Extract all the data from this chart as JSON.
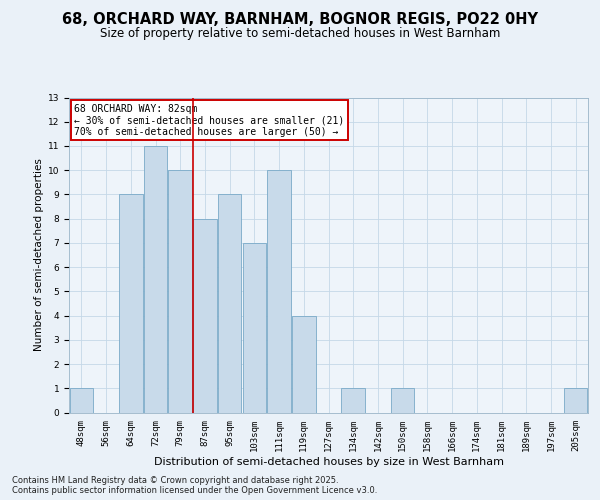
{
  "title1": "68, ORCHARD WAY, BARNHAM, BOGNOR REGIS, PO22 0HY",
  "title2": "Size of property relative to semi-detached houses in West Barnham",
  "xlabel": "Distribution of semi-detached houses by size in West Barnham",
  "ylabel": "Number of semi-detached properties",
  "categories": [
    "48sqm",
    "56sqm",
    "64sqm",
    "72sqm",
    "79sqm",
    "87sqm",
    "95sqm",
    "103sqm",
    "111sqm",
    "119sqm",
    "127sqm",
    "134sqm",
    "142sqm",
    "150sqm",
    "158sqm",
    "166sqm",
    "174sqm",
    "181sqm",
    "189sqm",
    "197sqm",
    "205sqm"
  ],
  "values": [
    1,
    0,
    9,
    11,
    10,
    8,
    9,
    7,
    10,
    4,
    0,
    1,
    0,
    1,
    0,
    0,
    0,
    0,
    0,
    0,
    1
  ],
  "bar_color": "#c8daea",
  "bar_edge_color": "#7aaac8",
  "red_line_x": 4.5,
  "annotation_line1": "68 ORCHARD WAY: 82sqm",
  "annotation_line2": "← 30% of semi-detached houses are smaller (21)",
  "annotation_line3": "70% of semi-detached houses are larger (50) →",
  "annotation_box_color": "#ffffff",
  "annotation_box_edge_color": "#cc0000",
  "red_line_color": "#cc0000",
  "ylim": [
    0,
    13
  ],
  "yticks": [
    0,
    1,
    2,
    3,
    4,
    5,
    6,
    7,
    8,
    9,
    10,
    11,
    12,
    13
  ],
  "grid_color": "#c5d8e8",
  "background_color": "#eaf1f8",
  "plot_bg_color": "#eef4fa",
  "footer1": "Contains HM Land Registry data © Crown copyright and database right 2025.",
  "footer2": "Contains public sector information licensed under the Open Government Licence v3.0.",
  "title1_fontsize": 10.5,
  "title2_fontsize": 8.5,
  "xlabel_fontsize": 8,
  "ylabel_fontsize": 7.5,
  "tick_fontsize": 6.5,
  "annot_fontsize": 7,
  "footer_fontsize": 6
}
